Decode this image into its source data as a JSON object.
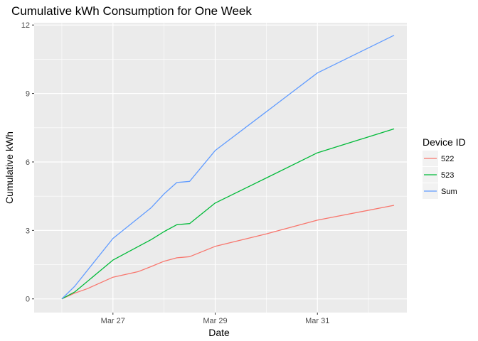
{
  "chart_data": {
    "type": "line",
    "title": "Cumulative kWh Consumption for One Week",
    "xlabel": "Date",
    "ylabel": "Cumulative kWh",
    "x_axis_type": "date",
    "xlim": [
      "2017-03-25T11:00",
      "2017-04-01T18:00"
    ],
    "ylim": [
      -0.6,
      12.1
    ],
    "x_ticks": [
      {
        "value": "2017-03-27T00:00",
        "label": "Mar 27"
      },
      {
        "value": "2017-03-29T00:00",
        "label": "Mar 29"
      },
      {
        "value": "2017-03-31T00:00",
        "label": "Mar 31"
      }
    ],
    "y_ticks": [
      0,
      3,
      6,
      9,
      12
    ],
    "grid": true,
    "legend": {
      "title": "Device ID",
      "position": "right"
    },
    "series": [
      {
        "name": "522",
        "color": "#F8766D",
        "points": [
          [
            "2017-03-26T00:00",
            0.0
          ],
          [
            "2017-03-26T06:00",
            0.25
          ],
          [
            "2017-03-26T12:00",
            0.45
          ],
          [
            "2017-03-27T00:00",
            0.95
          ],
          [
            "2017-03-27T12:00",
            1.2
          ],
          [
            "2017-03-27T18:00",
            1.42
          ],
          [
            "2017-03-28T00:00",
            1.65
          ],
          [
            "2017-03-28T06:00",
            1.8
          ],
          [
            "2017-03-28T12:00",
            1.85
          ],
          [
            "2017-03-29T00:00",
            2.3
          ],
          [
            "2017-03-30T00:00",
            2.85
          ],
          [
            "2017-03-31T00:00",
            3.45
          ],
          [
            "2017-04-01T12:00",
            4.1
          ]
        ]
      },
      {
        "name": "523",
        "color": "#00BA38",
        "points": [
          [
            "2017-03-26T00:00",
            0.0
          ],
          [
            "2017-03-26T06:00",
            0.3
          ],
          [
            "2017-03-27T00:00",
            1.7
          ],
          [
            "2017-03-27T12:00",
            2.3
          ],
          [
            "2017-03-27T18:00",
            2.6
          ],
          [
            "2017-03-28T00:00",
            2.95
          ],
          [
            "2017-03-28T06:00",
            3.25
          ],
          [
            "2017-03-28T12:00",
            3.3
          ],
          [
            "2017-03-29T00:00",
            4.2
          ],
          [
            "2017-03-30T00:00",
            5.3
          ],
          [
            "2017-03-31T00:00",
            6.4
          ],
          [
            "2017-04-01T12:00",
            7.45
          ]
        ]
      },
      {
        "name": "Sum",
        "color": "#619CFF",
        "points": [
          [
            "2017-03-26T00:00",
            0.0
          ],
          [
            "2017-03-26T06:00",
            0.55
          ],
          [
            "2017-03-27T00:00",
            2.65
          ],
          [
            "2017-03-27T12:00",
            3.55
          ],
          [
            "2017-03-27T18:00",
            4.0
          ],
          [
            "2017-03-28T00:00",
            4.6
          ],
          [
            "2017-03-28T06:00",
            5.1
          ],
          [
            "2017-03-28T12:00",
            5.15
          ],
          [
            "2017-03-29T00:00",
            6.5
          ],
          [
            "2017-03-30T00:00",
            8.2
          ],
          [
            "2017-03-31T00:00",
            9.9
          ],
          [
            "2017-04-01T12:00",
            11.55
          ]
        ]
      }
    ]
  },
  "colors": {
    "panel_background": "#EBEBEB",
    "grid_major": "#FFFFFF",
    "axis_text": "#4D4D4D"
  }
}
